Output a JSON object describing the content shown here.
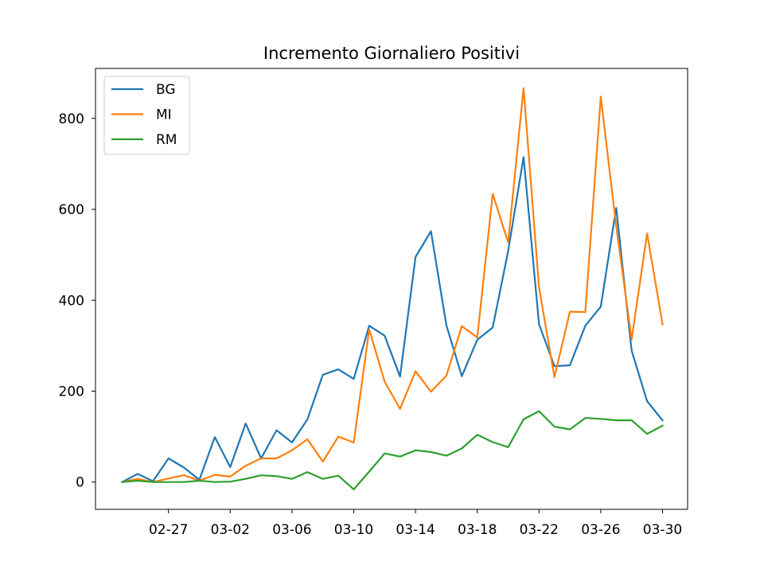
{
  "chart_data": {
    "type": "line",
    "title": "Incremento Giornaliero Positivi",
    "xlabel": "",
    "ylabel": "",
    "x_tick_labels": [
      "02-27",
      "03-02",
      "03-06",
      "03-10",
      "03-14",
      "03-18",
      "03-22",
      "03-26",
      "03-30"
    ],
    "y_ticks": [
      0,
      200,
      400,
      600,
      800
    ],
    "ylim": [
      -60,
      910
    ],
    "x": [
      "02-24",
      "02-25",
      "02-26",
      "02-27",
      "02-28",
      "02-29",
      "03-01",
      "03-02",
      "03-03",
      "03-04",
      "03-05",
      "03-06",
      "03-07",
      "03-08",
      "03-09",
      "03-10",
      "03-11",
      "03-12",
      "03-13",
      "03-14",
      "03-15",
      "03-16",
      "03-17",
      "03-18",
      "03-19",
      "03-20",
      "03-21",
      "03-22",
      "03-23",
      "03-24",
      "03-25",
      "03-26",
      "03-27",
      "03-28",
      "03-29",
      "03-30"
    ],
    "legend_position": "top-left",
    "grid": false,
    "series": [
      {
        "name": "BG",
        "color": "#1f77b4",
        "values": [
          0,
          18,
          2,
          52,
          32,
          5,
          99,
          33,
          129,
          52,
          114,
          87,
          138,
          236,
          248,
          227,
          344,
          322,
          232,
          495,
          552,
          345,
          233,
          313,
          340,
          508,
          715,
          347,
          255,
          257,
          344,
          386,
          603,
          289,
          178,
          136
        ]
      },
      {
        "name": "MI",
        "color": "#ff7f0e",
        "values": [
          0,
          7,
          0,
          8,
          15,
          3,
          16,
          12,
          36,
          52,
          52,
          70,
          94,
          45,
          100,
          87,
          336,
          221,
          161,
          244,
          199,
          234,
          343,
          318,
          634,
          527,
          867,
          428,
          231,
          375,
          374,
          848,
          563,
          314,
          547,
          347
        ]
      },
      {
        "name": "RM",
        "color": "#2ca02c",
        "values": [
          0,
          3,
          0,
          0,
          0,
          3,
          0,
          1,
          7,
          15,
          13,
          7,
          22,
          7,
          14,
          -16,
          23,
          63,
          56,
          70,
          66,
          58,
          74,
          104,
          88,
          77,
          138,
          156,
          122,
          116,
          141,
          139,
          136,
          136,
          106,
          124
        ]
      }
    ]
  }
}
